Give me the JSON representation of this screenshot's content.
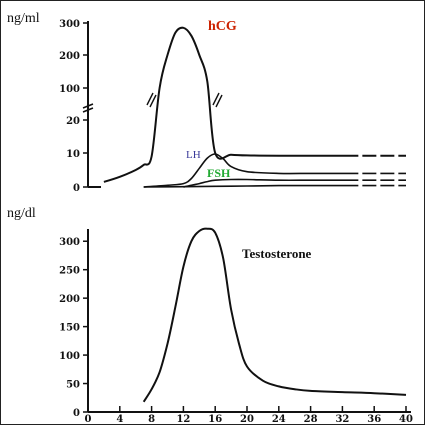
{
  "chart_data": [
    {
      "type": "line",
      "ylabel": "ng/ml",
      "y_ticks": [
        "0",
        "10",
        "20",
        "100",
        "200",
        "300"
      ],
      "y_scale": "broken",
      "xlim": [
        0,
        40
      ],
      "series": [
        {
          "name": "hCG",
          "color": "#cc2200",
          "x": [
            2,
            4,
            6,
            7,
            8,
            9,
            10,
            11,
            12,
            13,
            14,
            15,
            16,
            18,
            20,
            24,
            28,
            32,
            36,
            40
          ],
          "y": [
            1.5,
            3,
            5,
            6.5,
            9,
            100,
            200,
            270,
            285,
            260,
            200,
            120,
            10,
            9.5,
            9.3,
            9.2,
            9.2,
            9.2,
            9.2,
            9.2
          ]
        },
        {
          "name": "LH",
          "color": "#3a3a99",
          "x": [
            7,
            10,
            12,
            13,
            14,
            15,
            16,
            17,
            18,
            20,
            24,
            28,
            32,
            36,
            40
          ],
          "y": [
            0,
            0.5,
            1,
            2.5,
            5.5,
            8.5,
            9.7,
            8.3,
            6,
            4.5,
            4,
            4,
            4,
            4,
            4
          ]
        },
        {
          "name": "FSH",
          "color": "#22aa33",
          "x": [
            12,
            13,
            14,
            15,
            16,
            18,
            20,
            24,
            28,
            32,
            36,
            40
          ],
          "y": [
            0,
            0.5,
            1,
            1.6,
            2,
            2.2,
            2.2,
            2,
            2,
            2,
            2,
            2
          ]
        },
        {
          "name": "",
          "color": "#111111",
          "x": [
            7,
            12,
            16,
            20,
            24,
            28,
            32,
            36,
            40
          ],
          "y": [
            0,
            0.1,
            0.2,
            0.3,
            0.4,
            0.4,
            0.4,
            0.4,
            0.4
          ]
        }
      ]
    },
    {
      "type": "line",
      "ylabel": "ng/dl",
      "ylim": [
        0,
        325
      ],
      "y_ticks": [
        0,
        50,
        100,
        150,
        200,
        250,
        300
      ],
      "x_ticks": [
        4,
        8,
        12,
        16,
        20,
        24,
        28,
        32,
        36,
        40
      ],
      "xlim": [
        0,
        40
      ],
      "series": [
        {
          "name": "Testosterone",
          "x": [
            7,
            8,
            9,
            10,
            11,
            12,
            13,
            14,
            15,
            16,
            17,
            18,
            19,
            20,
            22,
            24,
            26,
            28,
            32,
            36,
            40
          ],
          "y": [
            18,
            40,
            70,
            120,
            185,
            255,
            300,
            318,
            322,
            315,
            270,
            180,
            120,
            80,
            55,
            45,
            40,
            37,
            35,
            33,
            30
          ]
        }
      ]
    }
  ],
  "labels": {
    "top_unit": "ng/ml",
    "bottom_unit": "ng/dl",
    "hcg": "hCG",
    "lh": "LH",
    "fsh": "FSH",
    "testosterone": "Testosterone"
  }
}
